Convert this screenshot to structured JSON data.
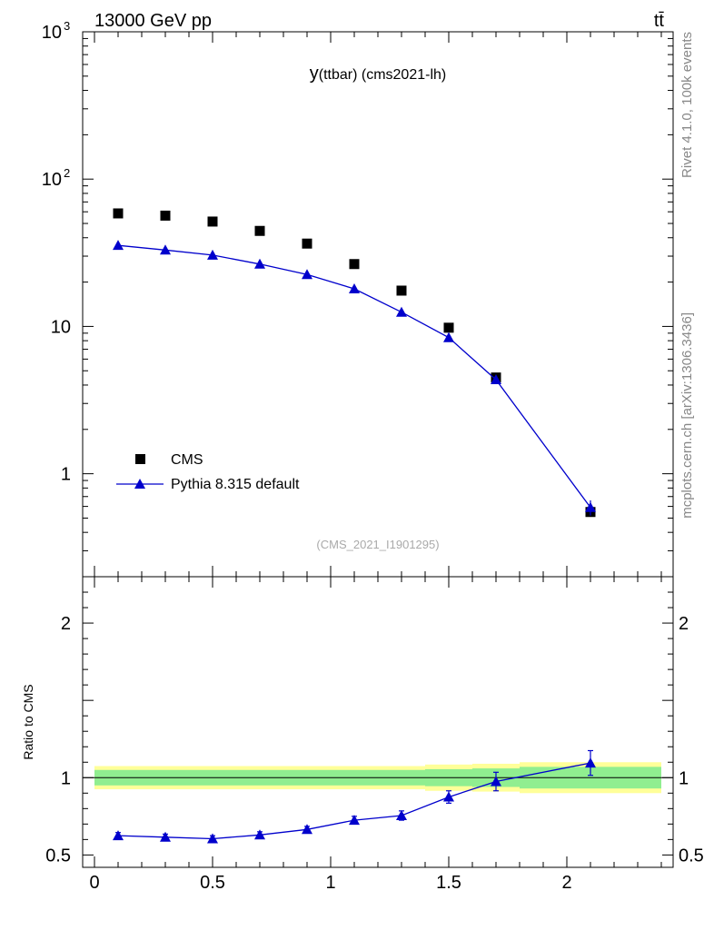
{
  "header": {
    "left": "13000 GeV pp",
    "right": "tt̄",
    "side_top": "Rivet 4.1.0,  100k events",
    "side_bottom": "mcplots.cern.ch [arXiv:1306.3436]",
    "watermark": "(CMS_2021_I1901295)"
  },
  "chart_data": [
    {
      "type": "scatter",
      "title_main": "y",
      "title_rest": "(ttbar) (cms2021-lh)",
      "xlabel": "",
      "ylabel": "",
      "yscale": "log",
      "xlim": [
        -0.05,
        2.45
      ],
      "ylim": [
        0.2,
        1000
      ],
      "yticks": [
        {
          "value": 1000,
          "base": "10",
          "exp": "3"
        },
        {
          "value": 100,
          "base": "10",
          "exp": "2"
        },
        {
          "value": 10,
          "base": "10",
          "exp": ""
        },
        {
          "value": 1,
          "base": "1",
          "exp": ""
        }
      ],
      "x": [
        0.1,
        0.3,
        0.5,
        0.7,
        0.9,
        1.1,
        1.3,
        1.5,
        1.7,
        2.1
      ],
      "series": [
        {
          "name": "CMS",
          "marker": "square",
          "color": "#000000",
          "values": [
            58.5,
            56.5,
            51.5,
            44.5,
            36.5,
            26.5,
            17.5,
            9.8,
            4.5,
            0.55
          ]
        },
        {
          "name": "Pythia 8.315 default",
          "marker": "triangle",
          "color": "#0000cc",
          "values": [
            35.5,
            33.0,
            30.5,
            26.5,
            22.5,
            18.0,
            12.5,
            8.4,
            4.35,
            0.59
          ],
          "errors": [
            0.6,
            0.5,
            0.5,
            0.5,
            0.4,
            0.4,
            0.4,
            0.3,
            0.2,
            0.07
          ]
        }
      ],
      "legend_position": "lower-left"
    },
    {
      "type": "line",
      "ylabel": "Ratio to CMS",
      "xlim": [
        -0.05,
        2.45
      ],
      "ylim": [
        0.42,
        2.3
      ],
      "xticks": [
        {
          "value": 0,
          "label": "0"
        },
        {
          "value": 0.5,
          "label": "0.5"
        },
        {
          "value": 1,
          "label": "1"
        },
        {
          "value": 1.5,
          "label": "1.5"
        },
        {
          "value": 2,
          "label": "2"
        }
      ],
      "yticks": [
        {
          "value": 2,
          "label": "2"
        },
        {
          "value": 1,
          "label": "1"
        },
        {
          "value": 0.5,
          "label": "0.5"
        }
      ],
      "x": [
        0.1,
        0.3,
        0.5,
        0.7,
        0.9,
        1.1,
        1.3,
        1.5,
        1.7,
        2.1
      ],
      "ratio": [
        0.625,
        0.615,
        0.605,
        0.63,
        0.665,
        0.725,
        0.755,
        0.875,
        0.975,
        1.095
      ],
      "ratio_errors": [
        0.02,
        0.02,
        0.02,
        0.02,
        0.02,
        0.025,
        0.03,
        0.04,
        0.06,
        0.08
      ],
      "bands": {
        "x_edges": [
          0.0,
          0.2,
          0.4,
          0.6,
          0.8,
          1.0,
          1.2,
          1.4,
          1.6,
          1.8,
          2.4
        ],
        "inner": [
          0.05,
          0.05,
          0.05,
          0.05,
          0.05,
          0.05,
          0.05,
          0.055,
          0.06,
          0.07
        ],
        "outer": [
          0.075,
          0.075,
          0.075,
          0.075,
          0.075,
          0.075,
          0.075,
          0.085,
          0.09,
          0.1
        ],
        "inner_color": "#90ee90",
        "outer_color": "#ffff99"
      }
    }
  ]
}
